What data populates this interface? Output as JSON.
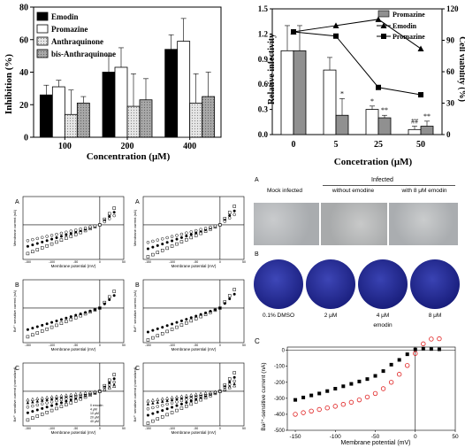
{
  "chart_data": [
    {
      "type": "bar",
      "legend": [
        "Emodin",
        "Promazine",
        "Anthraquinone",
        "bis-Anthraquinone"
      ],
      "categories": [
        "100",
        "200",
        "400"
      ],
      "series": [
        {
          "name": "Emodin",
          "values": [
            26,
            40,
            54
          ],
          "err": [
            6,
            10,
            9
          ]
        },
        {
          "name": "Promazine",
          "values": [
            31,
            43,
            59
          ],
          "err": [
            4,
            12,
            14
          ]
        },
        {
          "name": "Anthraquinone",
          "values": [
            14,
            19,
            21
          ],
          "err": [
            15,
            20,
            18
          ]
        },
        {
          "name": "bis-Anthraquinone",
          "values": [
            21,
            23,
            25
          ],
          "err": [
            4,
            13,
            15
          ]
        }
      ],
      "ylabel": "Inhibition (%)",
      "xlabel": "Concentration (μM)",
      "ylim": [
        0,
        80
      ],
      "yticks": [
        "0",
        "20",
        "40",
        "60",
        "80"
      ],
      "colors": [
        "#000000",
        "#ffffff",
        "#d8d8d8",
        "#a0a0a0"
      ]
    },
    {
      "type": "bar+line",
      "categories": [
        "0",
        "5",
        "25",
        "50"
      ],
      "bars": [
        {
          "name": "Relative infectivity",
          "values": [
            1.0,
            0.77,
            0.3,
            0.06
          ],
          "err": [
            0.3,
            0.15,
            0.04,
            0.04
          ],
          "color": "#ffffff"
        },
        {
          "name": "Promazine",
          "values": [
            1.0,
            0.23,
            0.2,
            0.1
          ],
          "err": [
            0.3,
            0.2,
            0.03,
            0.06
          ],
          "color": "#909090"
        }
      ],
      "lines": [
        {
          "name": "Emodin",
          "values": [
            98,
            104,
            110,
            82
          ],
          "marker": "triangle"
        },
        {
          "name": "Promazine",
          "values": [
            98,
            94,
            45,
            38
          ],
          "marker": "square"
        }
      ],
      "stars": [
        "",
        "*",
        "**",
        "**"
      ],
      "stars2": [
        "",
        "",
        "*",
        "##"
      ],
      "legend": [
        "Promazine",
        "Emodin",
        "Promazine"
      ],
      "ylabel_left": "Relative infectivity",
      "ylabel_right": "Cell viability (%)",
      "xlabel": "Concetration (μM)",
      "yleft_ticks": [
        "0.0",
        "0.3",
        "0.6",
        "0.9",
        "1.2",
        "1.5"
      ],
      "yright_ticks": [
        "0",
        "30",
        "60",
        "90",
        "120"
      ],
      "ylim_left": [
        0,
        1.5
      ],
      "ylim_right": [
        0,
        120
      ]
    }
  ],
  "iv_panels": {
    "xlabel": "Membrane potential (mV)",
    "ylabel_top": "Membrane current (nA)",
    "ylabel_mid": "Ba²⁺ sensitive current (nA)",
    "ylabel_bot": "Ba²⁺ sensitive current (normalized)",
    "panel_labels": [
      "A",
      "A",
      "B",
      "B",
      "C",
      "C"
    ],
    "xticks": [
      "-150",
      "-100",
      "-50",
      "0",
      "50"
    ],
    "legend": [
      "0 emodin",
      "4 μM",
      "10 μM",
      "20 μM",
      "40 μM"
    ]
  },
  "photo_panel": {
    "label_a": "A",
    "label_b": "B",
    "infected": "Infected",
    "cols": [
      "Mock infected",
      "without emodine",
      "with 8 μM emodin"
    ],
    "plate_labels": [
      "0.1% DMSO",
      "2 μM",
      "4 μM",
      "8 μM"
    ],
    "emodin_label": "emodin"
  },
  "panel_c": {
    "label": "C",
    "ylabel": "Ba²⁺-sensitive current (nA)",
    "xlabel": "Membrane potential (mV)",
    "xticks": [
      "-150",
      "-100",
      "-50",
      "0",
      "50"
    ],
    "yticks": [
      "0",
      "-100",
      "-200",
      "-300",
      "-400",
      "-500"
    ],
    "series": [
      {
        "name": "squares",
        "x": [
          -150,
          -140,
          -130,
          -120,
          -110,
          -100,
          -90,
          -80,
          -70,
          -60,
          -50,
          -40,
          -30,
          -20,
          -10,
          0,
          10,
          20,
          30
        ],
        "y": [
          -310,
          -295,
          -282,
          -270,
          -255,
          -240,
          -225,
          -210,
          -195,
          -180,
          -160,
          -130,
          -90,
          -60,
          -25,
          5,
          10,
          8,
          6
        ],
        "color": "#000000"
      },
      {
        "name": "circles",
        "x": [
          -150,
          -140,
          -130,
          -120,
          -110,
          -100,
          -90,
          -80,
          -70,
          -60,
          -50,
          -40,
          -30,
          -20,
          -10,
          0,
          10,
          20,
          30
        ],
        "y": [
          -400,
          -390,
          -380,
          -370,
          -360,
          -350,
          -338,
          -325,
          -310,
          -292,
          -270,
          -240,
          -200,
          -150,
          -95,
          -20,
          40,
          70,
          72
        ],
        "color": "#e02020"
      }
    ]
  }
}
